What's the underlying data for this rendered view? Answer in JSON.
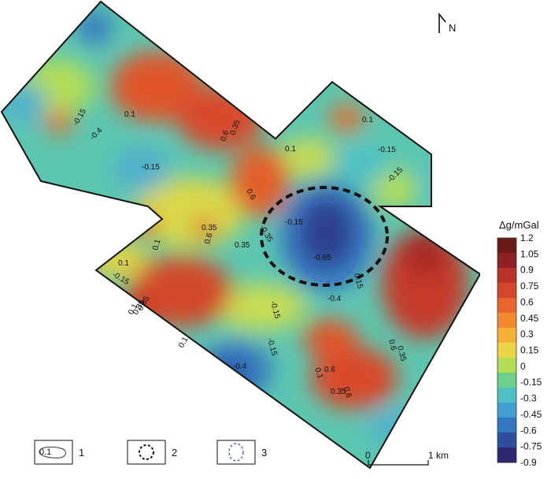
{
  "north": {
    "label": "N",
    "icon": "north-arrow-icon"
  },
  "contour_labels": [
    "-0.15",
    "-0.4",
    "0.1",
    "0.35",
    "0.6",
    "-0.15",
    "-0.15",
    "0.1",
    "0.6",
    "0.1",
    "-0.15",
    "-0.15",
    "0.6",
    "-0.35",
    "-0.65",
    "0.1",
    "0.35",
    "0.1",
    "-0.15",
    "0.1",
    "-0.15",
    "0.15",
    "0.35",
    "-0.4",
    "0.1",
    "-0.15",
    "-0.4",
    "0.1",
    "0.6",
    "0.35",
    "0.6",
    "0.6",
    "0.35",
    "0.35",
    "0.85"
  ],
  "colorbar": {
    "title": "Δg/mGal",
    "ticks": [
      "1.2",
      "1.05",
      "0.9",
      "0.75",
      "0.6",
      "0.45",
      "0.3",
      "0.15",
      "0",
      "-0.15",
      "-0.3",
      "-0.45",
      "-0.6",
      "-0.75",
      "-0.9"
    ],
    "colors": [
      "#6b1a1a",
      "#8e2222",
      "#b8322a",
      "#d4462c",
      "#e7652e",
      "#f08a30",
      "#f5b038",
      "#ecd44a",
      "#b4dd55",
      "#6ccf8a",
      "#4fc0c4",
      "#3f9fd0",
      "#3476c0",
      "#2d4e9f",
      "#2c2770"
    ]
  },
  "legend": {
    "items": [
      {
        "number": "1",
        "swatch_text": "0.1",
        "icon": "contour-line-icon"
      },
      {
        "number": "2",
        "icon": "black-dashed-circle-icon"
      },
      {
        "number": "3",
        "icon": "blue-dashed-outline-icon"
      }
    ]
  },
  "scale_bar": {
    "start": "0",
    "end": "1 km"
  }
}
